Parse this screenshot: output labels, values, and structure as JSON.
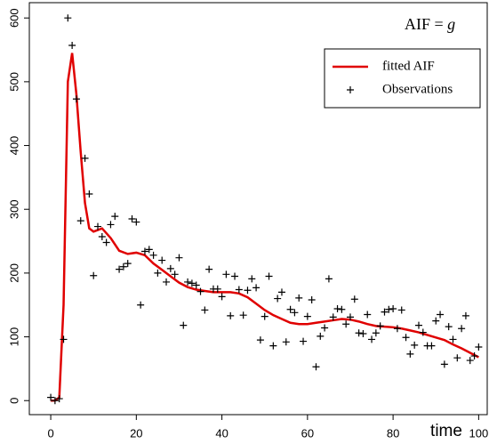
{
  "chart_data": {
    "type": "scatter",
    "annotation": [
      "AIF =",
      "g"
    ],
    "xlabel": "time",
    "xlim": [
      -5,
      102
    ],
    "ylim": [
      -22,
      624
    ],
    "xticks": [
      0,
      20,
      40,
      60,
      80,
      100
    ],
    "yticks": [
      0,
      100,
      200,
      300,
      400,
      500,
      600
    ],
    "legend": "top-right",
    "series": [
      {
        "name": "fitted AIF",
        "type": "line",
        "color": "#e00000",
        "x": [
          0,
          1,
          2,
          3,
          4,
          5,
          6,
          7,
          8,
          9,
          10,
          12,
          14,
          16,
          18,
          20,
          22,
          24,
          26,
          28,
          30,
          32,
          34,
          36,
          38,
          40,
          42,
          44,
          46,
          48,
          50,
          52,
          54,
          56,
          58,
          60,
          62,
          64,
          66,
          68,
          70,
          72,
          74,
          76,
          78,
          80,
          82,
          84,
          86,
          88,
          90,
          92,
          94,
          96,
          98,
          100
        ],
        "values": [
          0,
          0,
          5,
          150,
          500,
          545,
          480,
          390,
          310,
          270,
          265,
          270,
          255,
          235,
          230,
          232,
          228,
          215,
          205,
          195,
          185,
          178,
          174,
          172,
          170,
          170,
          170,
          168,
          162,
          152,
          142,
          134,
          128,
          122,
          120,
          120,
          122,
          124,
          126,
          128,
          127,
          124,
          120,
          117,
          116,
          115,
          113,
          110,
          107,
          103,
          99,
          95,
          88,
          82,
          75,
          68
        ]
      },
      {
        "name": "Observations",
        "type": "scatter",
        "color": "#000000",
        "x": [
          0,
          1,
          2,
          3,
          4,
          5,
          6,
          7,
          8,
          9,
          10,
          11,
          12,
          13,
          14,
          15,
          16,
          17,
          18,
          19,
          20,
          21,
          22,
          23,
          24,
          25,
          26,
          27,
          28,
          29,
          30,
          31,
          32,
          33,
          34,
          35,
          36,
          37,
          38,
          39,
          40,
          41,
          42,
          43,
          44,
          45,
          46,
          47,
          48,
          49,
          50,
          51,
          52,
          53,
          54,
          55,
          56,
          57,
          58,
          59,
          60,
          61,
          62,
          63,
          64,
          65,
          66,
          67,
          68,
          69,
          70,
          71,
          72,
          73,
          74,
          75,
          76,
          77,
          78,
          79,
          80,
          81,
          82,
          83,
          84,
          85,
          86,
          87,
          88,
          89,
          90,
          91,
          92,
          93,
          94,
          95,
          96,
          97,
          98,
          99,
          100
        ],
        "values": [
          5,
          0,
          3,
          96,
          600,
          557,
          473,
          282,
          380,
          324,
          196,
          273,
          257,
          248,
          276,
          289,
          206,
          210,
          215,
          285,
          280,
          150,
          234,
          237,
          228,
          200,
          220,
          186,
          207,
          198,
          224,
          118,
          186,
          184,
          181,
          171,
          142,
          206,
          175,
          175,
          163,
          198,
          133,
          195,
          174,
          134,
          173,
          191,
          177,
          95,
          132,
          195,
          86,
          160,
          170,
          92,
          143,
          138,
          161,
          93,
          132,
          158,
          53,
          101,
          114,
          191,
          131,
          144,
          143,
          120,
          131,
          159,
          106,
          105,
          135,
          96,
          106,
          117,
          139,
          143,
          144,
          113,
          142,
          99,
          73,
          87,
          118,
          107,
          86,
          86,
          125,
          135,
          57,
          116,
          96,
          67,
          113,
          133,
          63,
          70,
          84
        ]
      }
    ]
  }
}
